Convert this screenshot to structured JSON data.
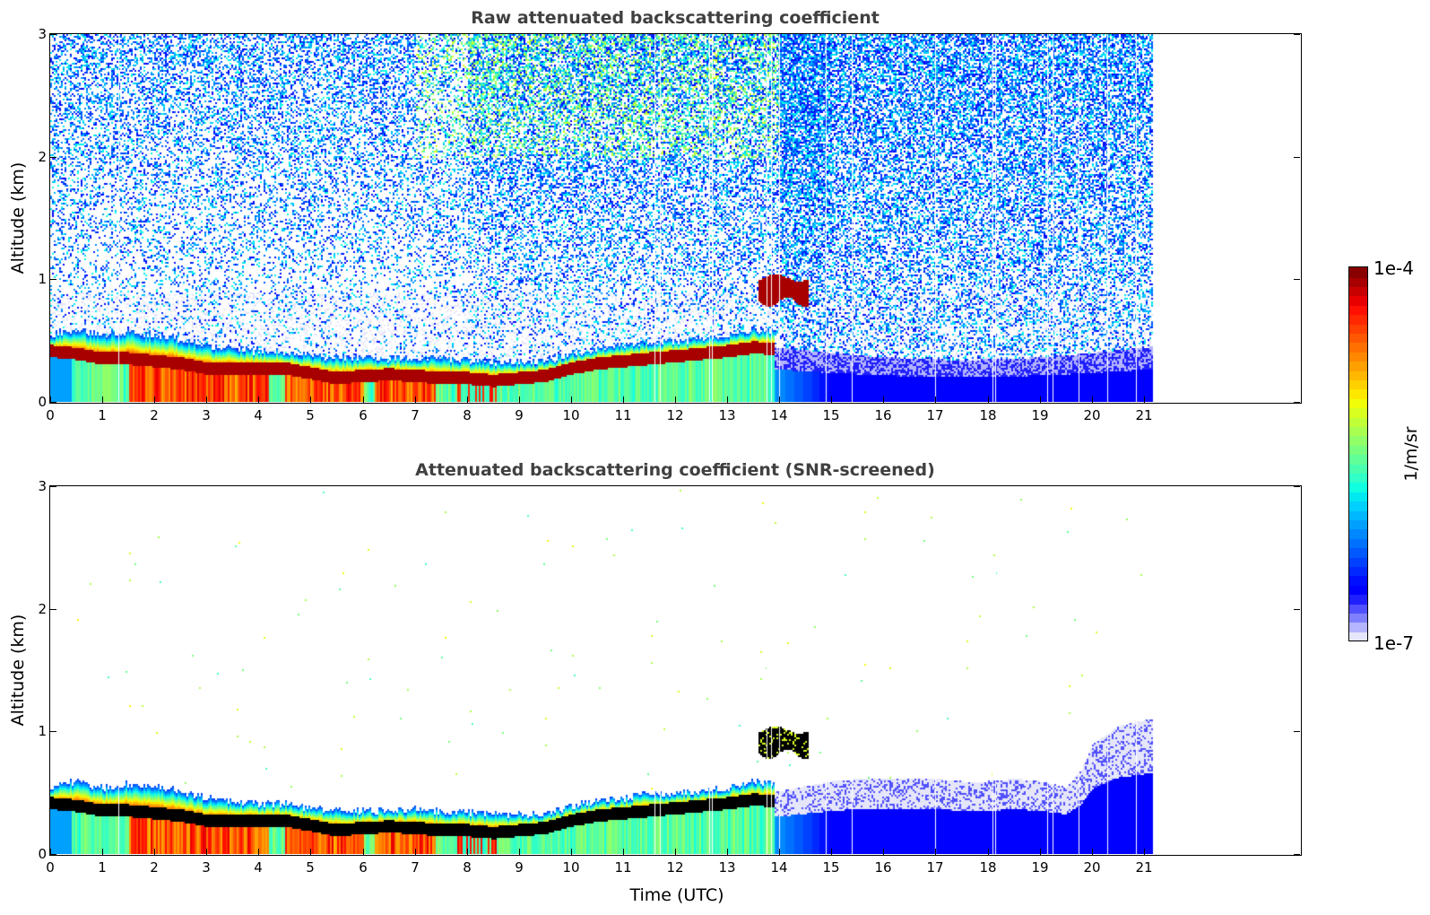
{
  "chart_data": [
    {
      "type": "heatmap",
      "title": "Raw attenuated backscattering coefficient",
      "xlabel": "",
      "ylabel": "Altitude (km)",
      "xlim": [
        0,
        24
      ],
      "ylim": [
        0,
        3
      ],
      "xticks": [
        "0",
        "1",
        "2",
        "3",
        "4",
        "5",
        "6",
        "7",
        "8",
        "9",
        "10",
        "11",
        "12",
        "13",
        "14",
        "15",
        "16",
        "17",
        "18",
        "19",
        "20",
        "21"
      ],
      "yticks": [
        "0",
        "1",
        "2",
        "3"
      ],
      "data_end_time": 21.15,
      "screened": false,
      "layer_top_km": {
        "time": [
          0,
          0.5,
          1,
          1.5,
          2,
          2.5,
          3,
          3.5,
          4,
          4.5,
          5,
          5.5,
          6,
          6.5,
          7,
          7.5,
          8,
          8.5,
          9,
          9.5,
          10,
          10.5,
          11,
          11.5,
          12,
          12.5,
          13,
          13.5,
          13.9
        ],
        "value": [
          0.55,
          0.6,
          0.55,
          0.58,
          0.55,
          0.52,
          0.46,
          0.44,
          0.42,
          0.42,
          0.38,
          0.37,
          0.36,
          0.36,
          0.37,
          0.36,
          0.35,
          0.33,
          0.33,
          0.34,
          0.4,
          0.44,
          0.46,
          0.5,
          0.5,
          0.52,
          0.55,
          0.6,
          0.58
        ]
      },
      "peak_layer_km": {
        "time": [
          0,
          0.5,
          1,
          1.5,
          2,
          2.5,
          3,
          3.5,
          4,
          4.5,
          5,
          5.5,
          6,
          6.5,
          7,
          7.5,
          8,
          8.5,
          9,
          9.5,
          10,
          10.5,
          11,
          11.5,
          12,
          12.5,
          13,
          13.5,
          13.9
        ],
        "value": [
          0.42,
          0.4,
          0.36,
          0.36,
          0.34,
          0.32,
          0.28,
          0.28,
          0.28,
          0.28,
          0.24,
          0.2,
          0.22,
          0.23,
          0.22,
          0.2,
          0.2,
          0.18,
          0.2,
          0.22,
          0.28,
          0.32,
          0.34,
          0.36,
          0.38,
          0.4,
          0.42,
          0.45,
          0.44
        ]
      },
      "elevated_layer": {
        "time_start": 13.6,
        "time_end": 14.55,
        "base_km": 0.82,
        "top_km": 1.02
      },
      "gap_times": [
        1.3,
        11.6,
        11.7,
        12.65,
        12.7,
        13.75,
        13.85,
        14.0,
        14.9,
        15.4,
        17.0,
        18.1,
        18.15,
        19.15,
        19.25,
        19.75,
        20.3,
        20.85
      ]
    },
    {
      "type": "heatmap",
      "title": "Attenuated backscattering coefficient (SNR-screened)",
      "xlabel": "Time (UTC)",
      "ylabel": "Altitude (km)",
      "xlim": [
        0,
        24
      ],
      "ylim": [
        0,
        3
      ],
      "xticks": [
        "0",
        "1",
        "2",
        "3",
        "4",
        "5",
        "6",
        "7",
        "8",
        "9",
        "10",
        "11",
        "12",
        "13",
        "14",
        "15",
        "16",
        "17",
        "18",
        "19",
        "20",
        "21"
      ],
      "yticks": [
        "0",
        "1",
        "2",
        "3"
      ],
      "data_end_time": 21.15,
      "screened": true,
      "night_top_km": {
        "time": [
          14,
          14.5,
          15,
          15.5,
          16,
          16.5,
          17,
          17.5,
          18,
          18.5,
          19,
          19.5,
          19.8,
          20,
          20.5,
          21,
          21.15
        ],
        "value": [
          0.52,
          0.56,
          0.6,
          0.62,
          0.62,
          0.62,
          0.62,
          0.6,
          0.6,
          0.62,
          0.6,
          0.55,
          0.7,
          0.9,
          1.05,
          1.1,
          1.1
        ]
      }
    }
  ],
  "colorbar": {
    "max_label": "1e-4",
    "min_label": "1e-7",
    "unit": "1/m/sr",
    "levels": 40,
    "colors": [
      "#e6e6fa",
      "#b4b4ff",
      "#8080ff",
      "#5050ff",
      "#2020ff",
      "#0000ff",
      "#0010ff",
      "#0028ff",
      "#0040ff",
      "#0058ff",
      "#0070ff",
      "#0088ff",
      "#00a0ff",
      "#00b8ff",
      "#00d0ff",
      "#00e8f0",
      "#10ffe0",
      "#30ffc8",
      "#48ffb0",
      "#60ff98",
      "#78ff80",
      "#90ff68",
      "#a8ff50",
      "#c0ff38",
      "#d8ff20",
      "#f0ff08",
      "#ffe800",
      "#ffd000",
      "#ffb800",
      "#ffa000",
      "#ff8800",
      "#ff7000",
      "#ff5800",
      "#ff4000",
      "#ff2800",
      "#ff1000",
      "#e80000",
      "#c80000",
      "#a80000",
      "#880000"
    ]
  }
}
